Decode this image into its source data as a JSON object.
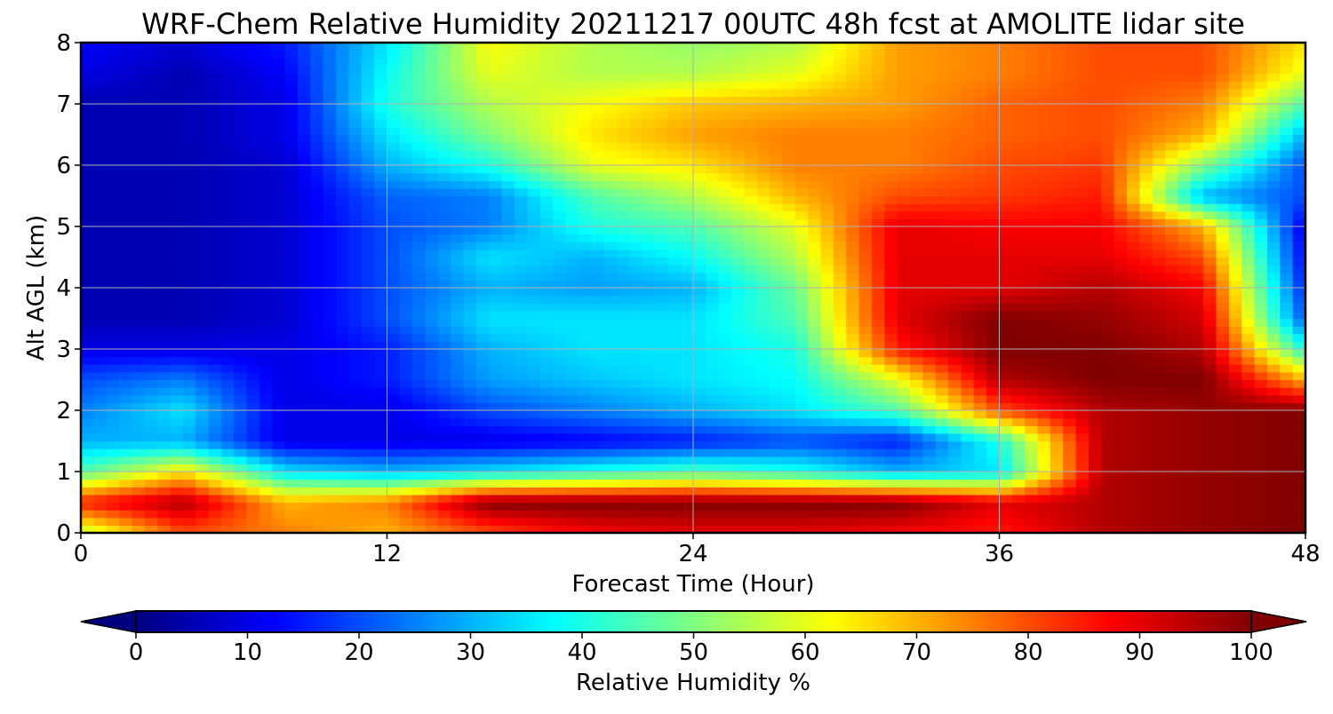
{
  "chart_data": {
    "type": "heatmap",
    "title": "WRF-Chem Relative Humidity 20211217 00UTC 48h fcst at AMOLITE lidar site",
    "xlabel": "Forecast Time (Hour)",
    "ylabel": "Alt AGL (km)",
    "xlim": [
      0,
      48
    ],
    "ylim": [
      0,
      8
    ],
    "x_ticks": [
      0,
      12,
      24,
      36,
      48
    ],
    "y_ticks": [
      0,
      1,
      2,
      3,
      4,
      5,
      6,
      7,
      8
    ],
    "grid": true,
    "colormap": "jet",
    "colorbar": {
      "label": "Relative Humidity %",
      "min": 0,
      "max": 100,
      "ticks": [
        0,
        10,
        20,
        30,
        40,
        50,
        60,
        70,
        80,
        90,
        100
      ],
      "extend": "both",
      "orientation": "horizontal"
    },
    "x": [
      0,
      4,
      8,
      12,
      16,
      20,
      24,
      28,
      32,
      36,
      40,
      44,
      48
    ],
    "y": [
      0.0,
      0.5,
      1.0,
      1.5,
      2.0,
      2.5,
      3.0,
      3.5,
      4.0,
      4.5,
      5.0,
      5.5,
      6.0,
      6.5,
      7.0,
      7.5,
      8.0
    ],
    "z": [
      [
        55,
        80,
        75,
        70,
        80,
        88,
        90,
        90,
        88,
        85,
        95,
        98,
        100
      ],
      [
        85,
        96,
        70,
        75,
        100,
        100,
        100,
        100,
        100,
        90,
        95,
        98,
        100
      ],
      [
        45,
        65,
        35,
        30,
        35,
        40,
        45,
        40,
        30,
        35,
        95,
        98,
        100
      ],
      [
        30,
        30,
        10,
        10,
        10,
        12,
        15,
        20,
        15,
        40,
        95,
        98,
        100
      ],
      [
        25,
        35,
        10,
        10,
        20,
        25,
        30,
        35,
        45,
        80,
        95,
        98,
        100
      ],
      [
        20,
        25,
        10,
        15,
        28,
        32,
        35,
        38,
        60,
        95,
        100,
        100,
        70
      ],
      [
        10,
        10,
        10,
        15,
        30,
        35,
        35,
        40,
        85,
        100,
        100,
        95,
        40
      ],
      [
        5,
        5,
        8,
        20,
        35,
        35,
        35,
        45,
        90,
        100,
        98,
        92,
        20
      ],
      [
        5,
        5,
        8,
        20,
        30,
        28,
        30,
        48,
        90,
        90,
        95,
        88,
        15
      ],
      [
        5,
        5,
        8,
        20,
        35,
        30,
        38,
        55,
        90,
        90,
        90,
        80,
        12
      ],
      [
        5,
        5,
        8,
        20,
        25,
        40,
        45,
        60,
        90,
        88,
        88,
        70,
        10
      ],
      [
        5,
        5,
        8,
        22,
        25,
        45,
        55,
        70,
        80,
        82,
        85,
        30,
        20
      ],
      [
        5,
        5,
        8,
        30,
        40,
        60,
        65,
        75,
        75,
        80,
        82,
        50,
        20
      ],
      [
        5,
        5,
        10,
        35,
        50,
        65,
        72,
        75,
        75,
        78,
        80,
        70,
        30
      ],
      [
        5,
        5,
        10,
        40,
        55,
        62,
        68,
        70,
        72,
        78,
        80,
        75,
        45
      ],
      [
        10,
        5,
        12,
        38,
        60,
        55,
        55,
        60,
        72,
        75,
        80,
        80,
        60
      ],
      [
        12,
        8,
        15,
        35,
        62,
        55,
        52,
        55,
        72,
        75,
        80,
        80,
        65
      ]
    ]
  }
}
